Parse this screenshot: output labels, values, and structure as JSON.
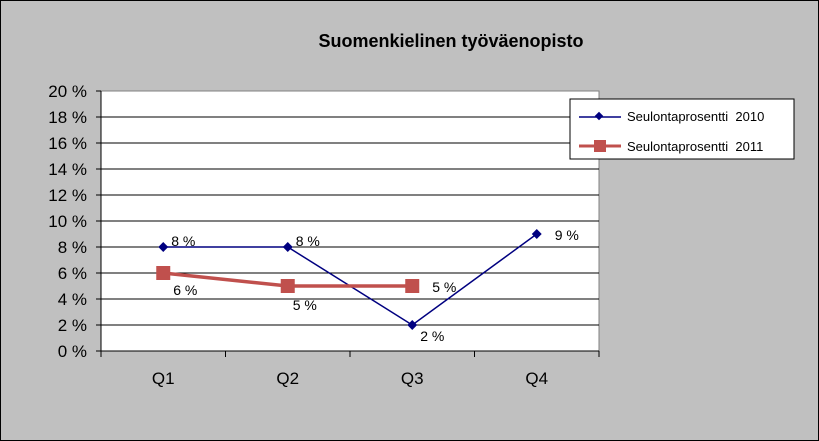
{
  "chart_data": {
    "type": "line",
    "title": "Suomenkielinen työväenopisto",
    "categories": [
      "Q1",
      "Q2",
      "Q3",
      "Q4"
    ],
    "y_ticks": [
      "0 %",
      "2 %",
      "4 %",
      "6 %",
      "8 %",
      "10 %",
      "12 %",
      "14 %",
      "16 %",
      "18 %",
      "20 %"
    ],
    "ylim": [
      0,
      20
    ],
    "ylabel": "",
    "xlabel": "",
    "grid": true,
    "legend_position": "right",
    "series": [
      {
        "name": "Seulontaprosentti  2010",
        "values": [
          8,
          8,
          2,
          9
        ],
        "labels": [
          "8 %",
          "8 %",
          "2 %",
          "9 %"
        ],
        "color": "#000080",
        "marker": "diamond"
      },
      {
        "name": "Seulontaprosentti  2011",
        "values": [
          6,
          5,
          5,
          null
        ],
        "labels": [
          "6 %",
          "5 %",
          "5 %",
          ""
        ],
        "color": "#c0504d",
        "marker": "square"
      }
    ]
  }
}
